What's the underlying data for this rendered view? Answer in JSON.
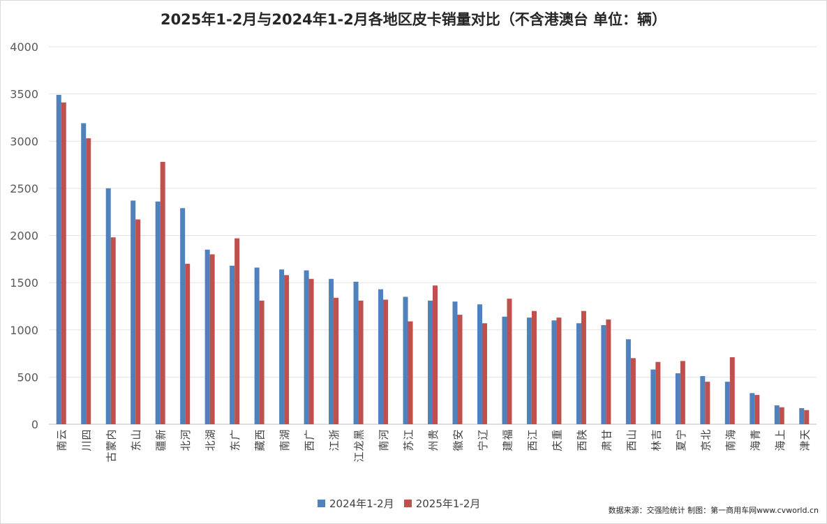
{
  "chart_data": {
    "type": "bar",
    "title": "2025年1-2月与2024年1-2月各地区皮卡销量对比（不含港澳台 单位：辆）",
    "categories": [
      "云南",
      "四川",
      "内蒙古",
      "山东",
      "新疆",
      "河北",
      "湖北",
      "广东",
      "西藏",
      "湖南",
      "广西",
      "浙江",
      "黑龙江",
      "河南",
      "江苏",
      "贵州",
      "安徽",
      "辽宁",
      "福建",
      "江西",
      "重庆",
      "陕西",
      "甘肃",
      "山西",
      "吉林",
      "宁夏",
      "北京",
      "海南",
      "青海",
      "上海",
      "天津"
    ],
    "series": [
      {
        "name": "2024年1-2月",
        "color": "#4f81bd",
        "values": [
          3490,
          3190,
          2500,
          2370,
          2360,
          2290,
          1850,
          1680,
          1660,
          1640,
          1630,
          1540,
          1510,
          1430,
          1350,
          1310,
          1300,
          1270,
          1140,
          1130,
          1100,
          1070,
          1050,
          900,
          580,
          540,
          510,
          450,
          330,
          200,
          170
        ]
      },
      {
        "name": "2025年1-2月",
        "color": "#c0504d",
        "values": [
          3410,
          3030,
          1980,
          2170,
          2780,
          1700,
          1800,
          1970,
          1310,
          1580,
          1540,
          1340,
          1310,
          1320,
          1090,
          1470,
          1160,
          1070,
          1330,
          1200,
          1130,
          1200,
          1110,
          700,
          660,
          670,
          450,
          710,
          310,
          180,
          150
        ]
      }
    ],
    "ylim": [
      0,
      4000
    ],
    "yticks": [
      0,
      500,
      1000,
      1500,
      2000,
      2500,
      3000,
      3500,
      4000
    ],
    "grid": true,
    "legend": "bottom"
  },
  "source_text": "数据来源：交强险统计 制图：第一商用车网www.cvworld.cn"
}
